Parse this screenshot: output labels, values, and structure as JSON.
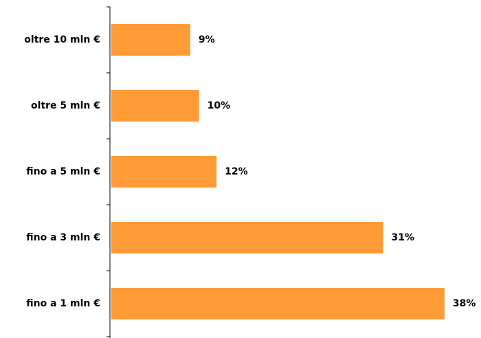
{
  "chart_data": {
    "type": "bar",
    "orientation": "horizontal",
    "categories": [
      "oltre 10 mln €",
      "oltre 5 mln €",
      "fino a 5 mln €",
      "fino a 3 mln €",
      "fino a 1 mln €"
    ],
    "values": [
      9,
      10,
      12,
      31,
      38
    ],
    "value_labels": [
      "9%",
      "10%",
      "12%",
      "31%",
      "38%"
    ],
    "color": "#ff9b37"
  }
}
